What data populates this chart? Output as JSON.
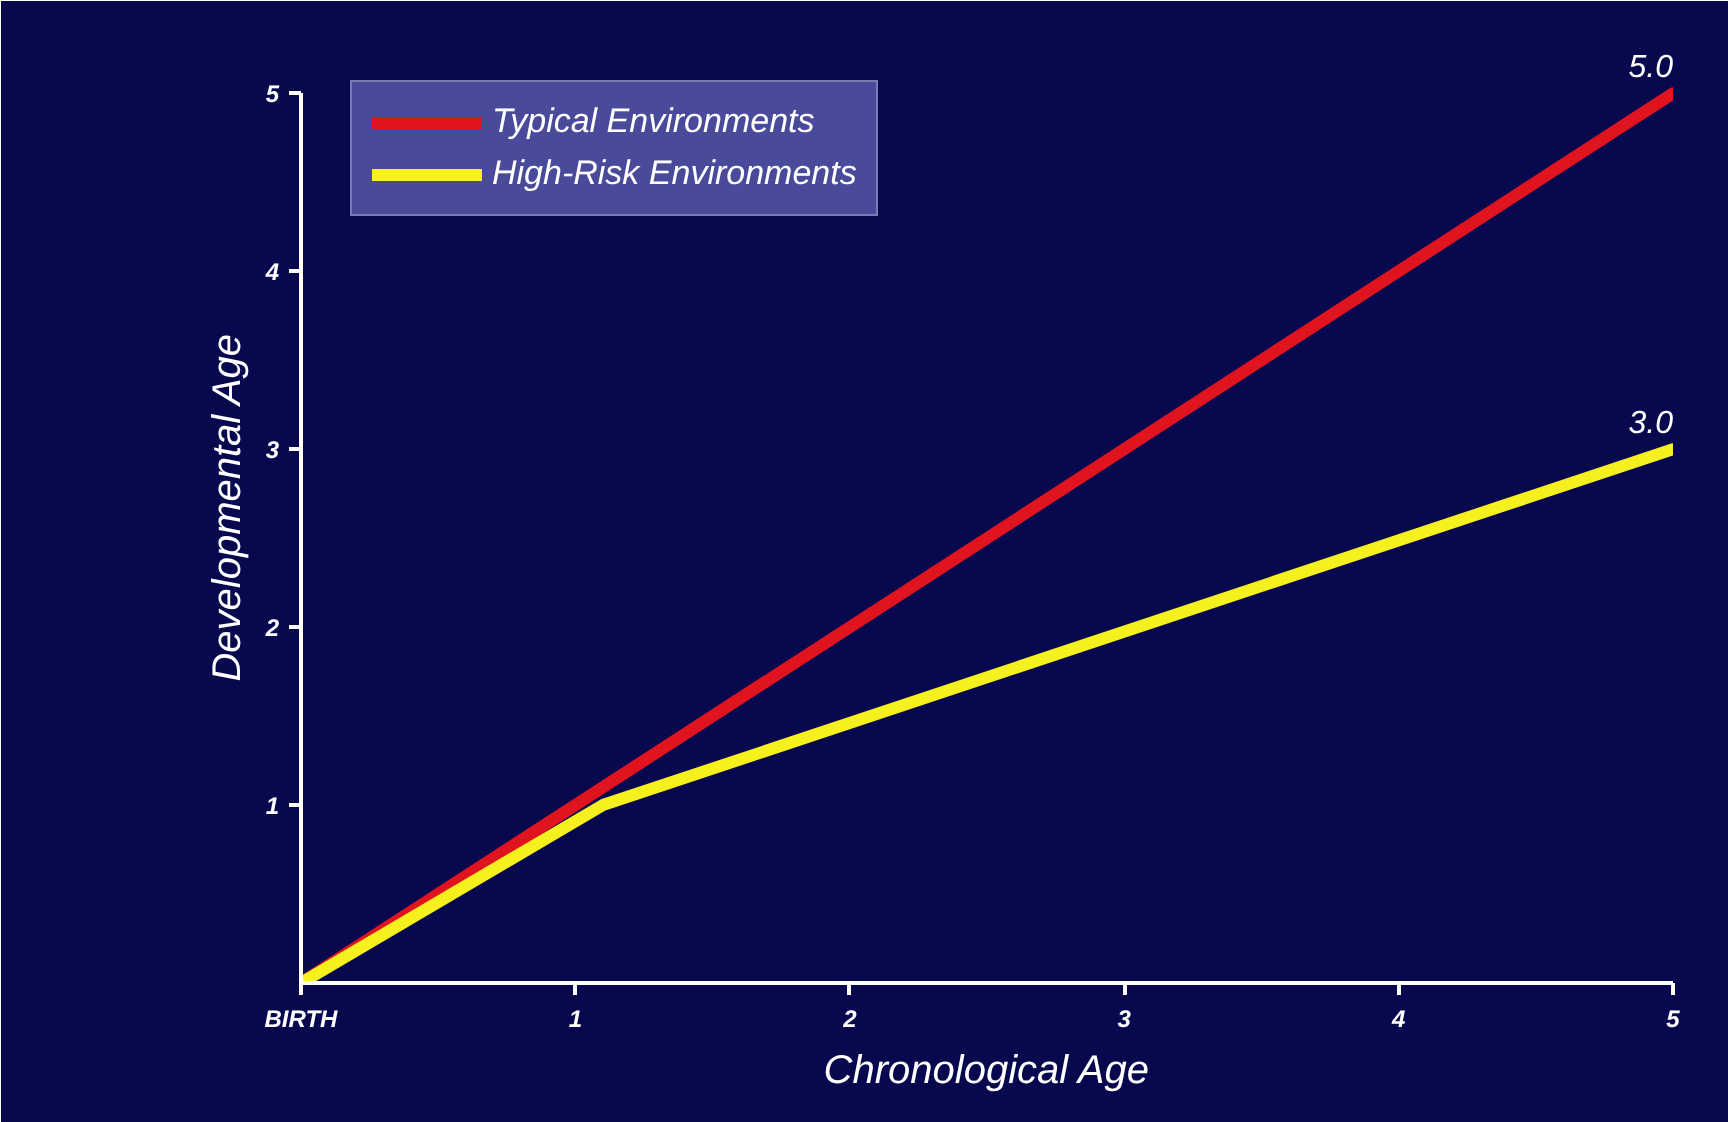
{
  "chart_data": {
    "type": "line",
    "xlabel": "Chronological Age",
    "ylabel": "Developmental Age",
    "xlim": [
      0,
      5
    ],
    "ylim": [
      0,
      5
    ],
    "xticks": [
      {
        "value": 0,
        "label": "BIRTH"
      },
      1,
      2,
      3,
      4,
      5
    ],
    "yticks": [
      1,
      2,
      3,
      4,
      5
    ],
    "grid": false,
    "legend": "top left",
    "marker": "none",
    "line_style": "solid",
    "series": [
      {
        "name": "Typical Environments",
        "color": "#e0141e",
        "x": [
          0,
          5
        ],
        "values": [
          0,
          5
        ]
      },
      {
        "name": "High-Risk Environments",
        "color": "#f5f01e",
        "x": [
          0,
          1.1,
          5
        ],
        "values": [
          0,
          1.0,
          3.0
        ]
      }
    ],
    "annotations": [
      {
        "text": "5.0",
        "x": 5,
        "y": 5
      },
      {
        "text": "3.0",
        "x": 5,
        "y": 3
      }
    ]
  }
}
